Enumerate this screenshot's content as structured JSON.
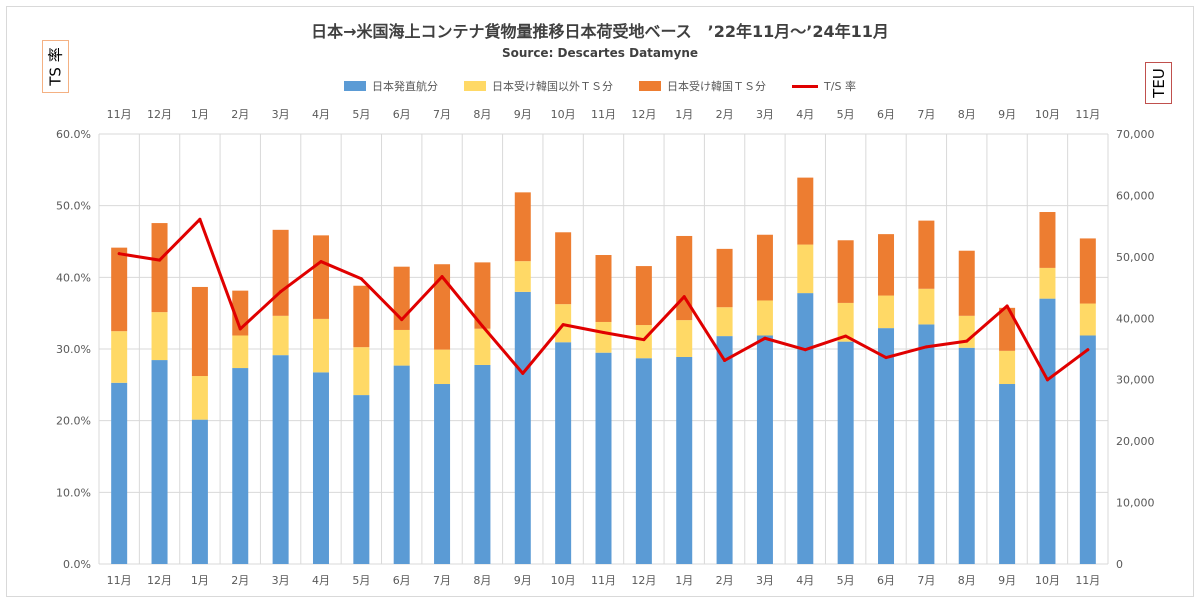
{
  "title": "日本→米国海上コンテナ貨物量推移日本荷受地ベース　’22年11月～’24年11月",
  "subtitle": "Source: Descartes Datamyne",
  "left_axis_box": "TS 率",
  "right_axis_box": "TEU",
  "colors": {
    "direct": "#5b9bd5",
    "other_ts": "#ffd966",
    "korea_ts": "#ed7d31",
    "ratio": "#e00000",
    "grid": "#d9d9d9"
  },
  "chart_data": {
    "type": "bar",
    "stacked": true,
    "categories": [
      "11月",
      "12月",
      "1月",
      "2月",
      "3月",
      "4月",
      "5月",
      "6月",
      "7月",
      "8月",
      "9月",
      "10月",
      "11月",
      "12月",
      "1月",
      "2月",
      "3月",
      "4月",
      "5月",
      "6月",
      "7月",
      "8月",
      "9月",
      "10月",
      "11月"
    ],
    "series": [
      {
        "name": "日本発直航分",
        "axis": "right",
        "color_key": "direct",
        "values": [
          29500,
          33200,
          23500,
          31900,
          34000,
          31200,
          27500,
          32300,
          29300,
          32400,
          44300,
          36100,
          34400,
          33500,
          33700,
          37100,
          37200,
          44100,
          36200,
          38400,
          39000,
          35200,
          29300,
          43200,
          37200
        ]
      },
      {
        "name": "日本受け韓国以外ＴＳ分",
        "axis": "right",
        "color_key": "other_ts",
        "values": [
          8400,
          7800,
          7100,
          5300,
          6400,
          8700,
          7800,
          5800,
          5600,
          5900,
          5000,
          6200,
          5000,
          5400,
          6000,
          4700,
          5700,
          7900,
          6300,
          5300,
          5800,
          5200,
          5400,
          5000,
          5200
        ]
      },
      {
        "name": "日本受け韓国ＴＳ分",
        "axis": "right",
        "color_key": "korea_ts",
        "values": [
          13600,
          14500,
          14500,
          7300,
          14000,
          13600,
          10000,
          10300,
          13900,
          10800,
          11200,
          11700,
          10900,
          9600,
          13700,
          9500,
          10700,
          10900,
          10200,
          10000,
          11100,
          10600,
          7000,
          9100,
          10600
        ]
      },
      {
        "name": "T/S 率",
        "type": "line",
        "axis": "left",
        "color_key": "ratio",
        "values": [
          43.3,
          42.4,
          48.1,
          32.8,
          38.0,
          42.2,
          39.8,
          34.1,
          40.1,
          33.2,
          26.6,
          33.4,
          32.3,
          31.3,
          37.3,
          28.4,
          31.5,
          29.9,
          31.8,
          28.8,
          30.3,
          31.1,
          36.0,
          25.7,
          29.9
        ]
      }
    ],
    "y_left": {
      "min": 0,
      "max": 60,
      "step": 10,
      "ticks": [
        "0.0%",
        "10.0%",
        "20.0%",
        "30.0%",
        "40.0%",
        "50.0%",
        "60.0%"
      ]
    },
    "y_right": {
      "min": 0,
      "max": 70000,
      "step": 10000,
      "ticks": [
        "0",
        "10,000",
        "20,000",
        "30,000",
        "40,000",
        "50,000",
        "60,000",
        "70,000"
      ]
    },
    "grid": true,
    "legend_position": "top"
  }
}
